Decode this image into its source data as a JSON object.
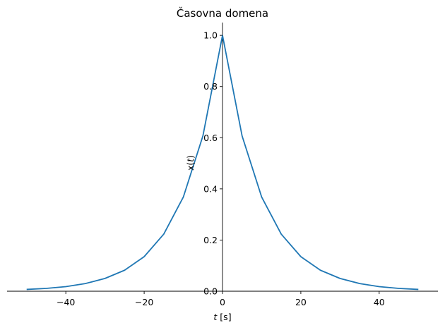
{
  "chart_data": {
    "type": "line",
    "title": "Časovna domena",
    "xlabel": {
      "var": "t",
      "unit": " [s]"
    },
    "ylabel": {
      "pre": "x(",
      "var": "t",
      "post": ")"
    },
    "xlim": [
      -55,
      55
    ],
    "ylim": [
      0,
      1.05
    ],
    "xticks": [
      -40,
      -20,
      0,
      20,
      40
    ],
    "yticks": [
      0.0,
      0.2,
      0.4,
      0.6,
      0.8,
      1.0
    ],
    "xtick_labels": [
      "−40",
      "−20",
      "0",
      "20",
      "40"
    ],
    "ytick_labels": [
      "0.0",
      "0.2",
      "0.4",
      "0.6",
      "0.8",
      "1.0"
    ],
    "grid": false,
    "series": [
      {
        "color": "#1f77b4",
        "x": [
          -50,
          -45,
          -40,
          -35,
          -30,
          -25,
          -20,
          -15,
          -10,
          -5,
          0,
          5,
          10,
          15,
          20,
          25,
          30,
          35,
          40,
          45,
          50
        ],
        "y": [
          0.007,
          0.011,
          0.018,
          0.03,
          0.05,
          0.082,
          0.135,
          0.223,
          0.368,
          0.607,
          1.0,
          0.607,
          0.368,
          0.223,
          0.135,
          0.082,
          0.05,
          0.03,
          0.018,
          0.011,
          0.007
        ]
      }
    ]
  }
}
